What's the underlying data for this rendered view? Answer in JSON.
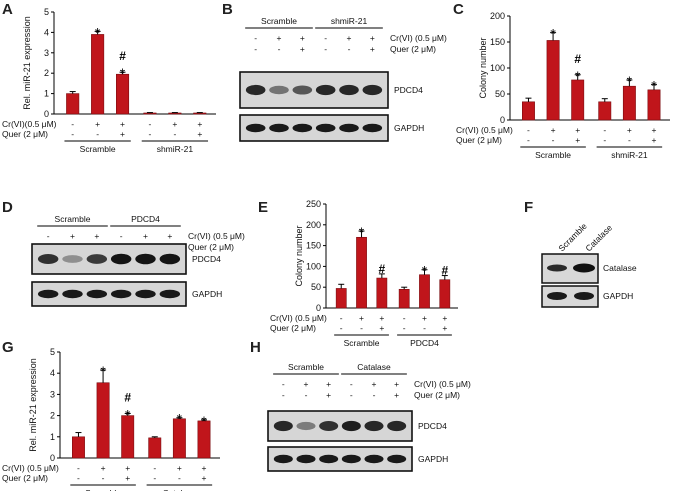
{
  "panels": {
    "A": "A",
    "B": "B",
    "C": "C",
    "D": "D",
    "E": "E",
    "F": "F",
    "G": "G",
    "H": "H"
  },
  "treatment_labels": {
    "cr_a": "Cr(VI)(0.5 μM)",
    "quer_a": "Quer (2 μM)",
    "cr": "Cr(VI) (0.5 μM)",
    "quer": "Quer (2 μM)",
    "cr_g": "Cr(VI) (0.5 μM)",
    "quer_g": "Quer (2 μM)"
  },
  "signs": {
    "plus": "+",
    "minus": "-",
    "star": "*",
    "hash": "#"
  },
  "blot_B": {
    "groups": [
      "Scramble",
      "shmiR-21"
    ],
    "bands": [
      "PDCD4",
      "GAPDH"
    ],
    "lanes_cr": [
      "-",
      "+",
      "+",
      "-",
      "+",
      "+"
    ],
    "lanes_quer": [
      "-",
      "-",
      "+",
      "-",
      "-",
      "+"
    ],
    "pdcd4_intensity": [
      0.85,
      0.45,
      0.6,
      0.85,
      0.85,
      0.85
    ]
  },
  "blot_D": {
    "groups": [
      "Scramble",
      "PDCD4"
    ],
    "bands": [
      "PDCD4",
      "GAPDH"
    ],
    "lanes_cr": [
      "-",
      "+",
      "+",
      "-",
      "+",
      "+"
    ],
    "lanes_quer": [
      "-",
      "-",
      "+",
      "-",
      "-",
      "+"
    ],
    "pdcd4_intensity": [
      0.8,
      0.3,
      0.75,
      0.95,
      0.95,
      0.95
    ]
  },
  "blot_F": {
    "lanes": [
      "Scramble",
      "Catalase"
    ],
    "bands": [
      "Catalase",
      "GAPDH"
    ]
  },
  "blot_H": {
    "groups": [
      "Scramble",
      "Catalase"
    ],
    "bands": [
      "PDCD4",
      "GAPDH"
    ],
    "lanes_cr": [
      "-",
      "+",
      "+",
      "-",
      "+",
      "+"
    ],
    "lanes_quer": [
      "-",
      "-",
      "+",
      "-",
      "-",
      "+"
    ],
    "pdcd4_intensity": [
      0.85,
      0.4,
      0.8,
      0.9,
      0.85,
      0.85
    ]
  },
  "chart_data": [
    {
      "panel": "A",
      "type": "bar",
      "ylabel": "Rel. miR-21 expression",
      "ylim": [
        0,
        5
      ],
      "yticks": [
        0,
        1,
        2,
        3,
        4,
        5
      ],
      "groups": [
        "Scramble",
        "shmiR-21"
      ],
      "cr": [
        "-",
        "+",
        "+",
        "-",
        "+",
        "+"
      ],
      "quer": [
        "-",
        "-",
        "+",
        "-",
        "-",
        "+"
      ],
      "values": [
        1.0,
        3.9,
        1.95,
        0.05,
        0.05,
        0.05
      ],
      "errors": [
        0.1,
        0.15,
        0.1,
        0.02,
        0.02,
        0.02
      ],
      "marks": [
        "",
        "*",
        "#*",
        "",
        "",
        ""
      ]
    },
    {
      "panel": "C",
      "type": "bar",
      "ylabel": "Colony number",
      "ylim": [
        0,
        200
      ],
      "yticks": [
        0,
        50,
        100,
        150,
        200
      ],
      "groups": [
        "Scramble",
        "shmiR-21"
      ],
      "cr": [
        "-",
        "+",
        "+",
        "-",
        "+",
        "+"
      ],
      "quer": [
        "-",
        "-",
        "+",
        "-",
        "-",
        "+"
      ],
      "values": [
        35,
        153,
        77,
        35,
        65,
        58
      ],
      "errors": [
        7,
        15,
        10,
        6,
        12,
        10
      ],
      "marks": [
        "",
        "*",
        "#*",
        "",
        "*",
        "*"
      ]
    },
    {
      "panel": "E",
      "type": "bar",
      "ylabel": "Colony number",
      "ylim": [
        0,
        250
      ],
      "yticks": [
        0,
        50,
        100,
        150,
        200,
        250
      ],
      "groups": [
        "Scramble",
        "PDCD4"
      ],
      "cr": [
        "-",
        "+",
        "+",
        "-",
        "+",
        "+"
      ],
      "quer": [
        "-",
        "-",
        "+",
        "-",
        "-",
        "+"
      ],
      "values": [
        47,
        170,
        72,
        45,
        80,
        68
      ],
      "errors": [
        10,
        15,
        10,
        5,
        12,
        10
      ],
      "marks": [
        "",
        "*",
        "#",
        "",
        "*",
        "#"
      ]
    },
    {
      "panel": "G",
      "type": "bar",
      "ylabel": "Rel. miR-21 expression",
      "ylim": [
        0,
        5
      ],
      "yticks": [
        0,
        1,
        2,
        3,
        4,
        5
      ],
      "groups": [
        "Scramble",
        "Catalase"
      ],
      "cr": [
        "-",
        "+",
        "+",
        "-",
        "+",
        "+"
      ],
      "quer": [
        "-",
        "-",
        "+",
        "-",
        "-",
        "+"
      ],
      "values": [
        1.0,
        3.55,
        2.0,
        0.95,
        1.85,
        1.75
      ],
      "errors": [
        0.2,
        0.6,
        0.1,
        0.05,
        0.05,
        0.05
      ],
      "marks": [
        "",
        "*",
        "#*",
        "",
        "*",
        "*"
      ]
    }
  ]
}
